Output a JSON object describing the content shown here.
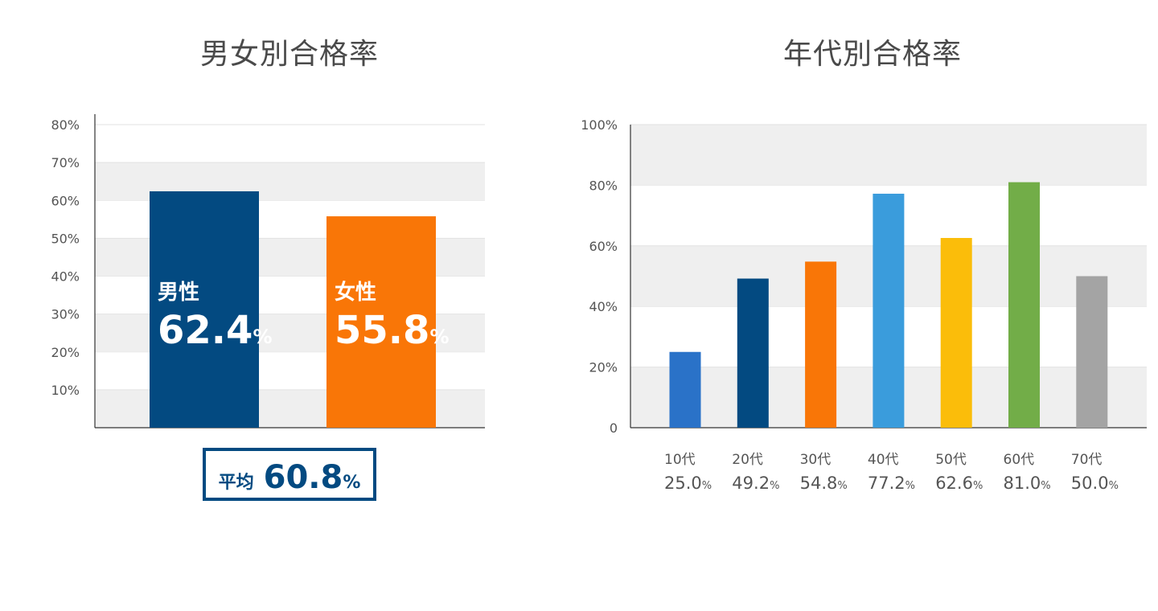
{
  "chart_data": [
    {
      "type": "bar",
      "title": "男女別合格率",
      "categories": [
        "男性",
        "女性"
      ],
      "values": [
        62.4,
        55.8
      ],
      "value_labels": [
        "62.4",
        "55.8"
      ],
      "unit": "%",
      "colors": [
        "#034a81",
        "#f97607"
      ],
      "ylim": [
        0,
        80
      ],
      "yticks": [
        "10%",
        "20%",
        "30%",
        "40%",
        "50%",
        "60%",
        "70%",
        "80%"
      ],
      "grid": "alternating bands",
      "average": {
        "label": "平均",
        "value": "60.8",
        "unit": "%"
      }
    },
    {
      "type": "bar",
      "title": "年代別合格率",
      "categories": [
        "10代",
        "20代",
        "30代",
        "40代",
        "50代",
        "60代",
        "70代"
      ],
      "values": [
        25.0,
        49.2,
        54.8,
        77.2,
        62.6,
        81.0,
        50.0
      ],
      "value_labels": [
        "25.0",
        "49.2",
        "54.8",
        "77.2",
        "62.6",
        "81.0",
        "50.0"
      ],
      "unit": "%",
      "colors": [
        "#2a72c8",
        "#034a81",
        "#f97607",
        "#3a9cdc",
        "#fbbd0a",
        "#72ad48",
        "#a4a4a4"
      ],
      "ylim": [
        0,
        100
      ],
      "yticks": [
        "0",
        "20%",
        "40%",
        "60%",
        "80%",
        "100%"
      ],
      "grid": "alternating bands"
    }
  ]
}
